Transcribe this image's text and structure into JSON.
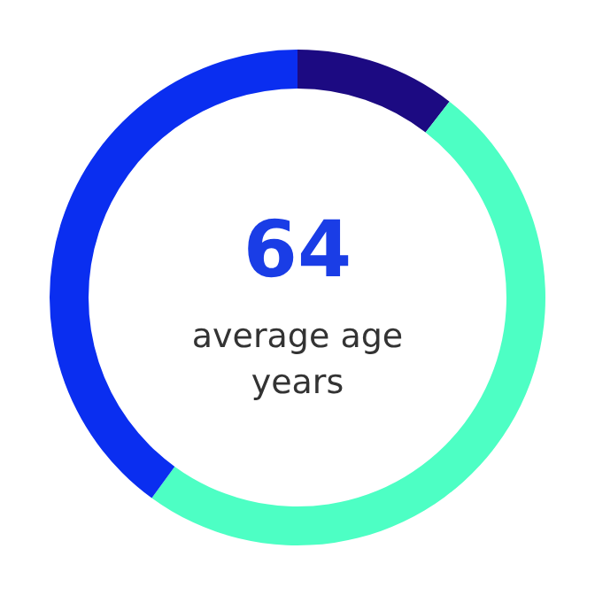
{
  "chart_data": {
    "type": "donut",
    "categories": [
      null,
      null,
      null
    ],
    "values": [
      10.5,
      49.5,
      40
    ],
    "colors": [
      "#1c0a82",
      "#4dffc4",
      "#0a2ef0"
    ],
    "annotations": [
      "64",
      "average age",
      "years"
    ],
    "legend": false
  }
}
